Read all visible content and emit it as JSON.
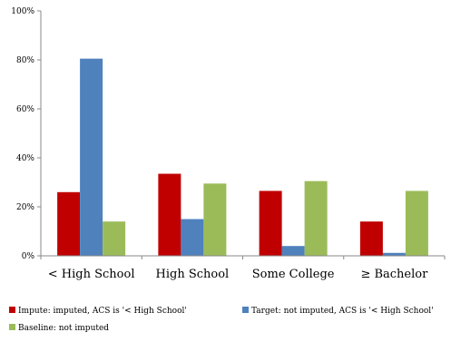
{
  "chart_data": {
    "type": "bar",
    "title": "",
    "xlabel": "",
    "ylabel": "",
    "ylim": [
      0,
      100
    ],
    "yticks": [
      0,
      20,
      40,
      60,
      80,
      100
    ],
    "ytick_labels": [
      "0%",
      "20%",
      "40%",
      "60%",
      "80%",
      "100%"
    ],
    "grid": false,
    "legend_position": "bottom",
    "categories": [
      "< High School",
      "High School",
      "Some College",
      "≥ Bachelor"
    ],
    "series": [
      {
        "name": "Impute: imputed, ACS is '< High School'",
        "color": "#c00000",
        "values": [
          26,
          33.5,
          26.5,
          14
        ]
      },
      {
        "name": "Target: not imputed, ACS is '< High School'",
        "color": "#4f81bd",
        "values": [
          80.5,
          15,
          4,
          1.2
        ]
      },
      {
        "name": "Baseline: not imputed",
        "color": "#9bbb59",
        "values": [
          14,
          29.5,
          30.5,
          26.5
        ]
      }
    ]
  }
}
